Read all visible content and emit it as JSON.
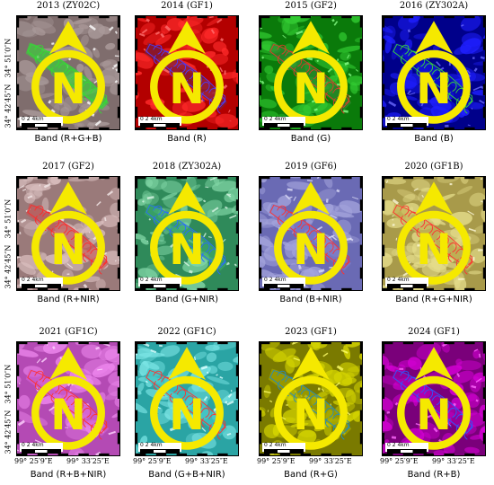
{
  "panels": [
    {
      "title": "2013 (ZY02C)",
      "caption": "Band (R+G+B)",
      "bg": "#7f6d6d",
      "terrain": "#aa9a9a",
      "snow": "#ffffff",
      "glacier": "#3ccf3c",
      "outline": "#33dd33"
    },
    {
      "title": "2014 (GF1)",
      "caption": "Band (R)",
      "bg": "#b30000",
      "terrain": "#ff2a2a",
      "snow": "#ff7070",
      "glacier": "#7a1f3a",
      "outline": "#4a3cff"
    },
    {
      "title": "2015 (GF2)",
      "caption": "Band (G)",
      "bg": "#0a7a0a",
      "terrain": "#33cc33",
      "snow": "#88ff88",
      "glacier": "#2f8a2f",
      "outline": "#e03a2a"
    },
    {
      "title": "2016 (ZY302A)",
      "caption": "Band (B)",
      "bg": "#00008a",
      "terrain": "#1f1fff",
      "snow": "#6a6aff",
      "glacier": "#0c0cc0",
      "outline": "#38d838"
    },
    {
      "title": "2017 (GF2)",
      "caption": "Band (R+NIR)",
      "bg": "#9a7a7a",
      "terrain": "#d9bebe",
      "snow": "#f4e8e8",
      "glacier": "#c05a5a",
      "outline": "#ff2a2a"
    },
    {
      "title": "2018 (ZY302A)",
      "caption": "Band (G+NIR)",
      "bg": "#2f8a5a",
      "terrain": "#7fd4a4",
      "snow": "#d8f4e4",
      "glacier": "#3aa86a",
      "outline": "#2a6aff"
    },
    {
      "title": "2019 (GF6)",
      "caption": "Band (B+NIR)",
      "bg": "#6a6ab4",
      "terrain": "#a4a4dc",
      "snow": "#dcdcf6",
      "glacier": "#7a7ac8",
      "outline": "#ff3030"
    },
    {
      "title": "2020 (GF1B)",
      "caption": "Band (R+G+NIR)",
      "bg": "#a89a4a",
      "terrain": "#e4dc8a",
      "snow": "#fbf8d8",
      "glacier": "#c8b85a",
      "outline": "#ff3030"
    },
    {
      "title": "2021 (GF1C)",
      "caption": "Band (R+B+NIR)",
      "bg": "#b44ab4",
      "terrain": "#ee88ee",
      "snow": "#ffd4ff",
      "glacier": "#d060d0",
      "outline": "#ff3030"
    },
    {
      "title": "2022 (GF1C)",
      "caption": "Band (G+B+NIR)",
      "bg": "#2aa4a4",
      "terrain": "#7ae4e4",
      "snow": "#e0ffff",
      "glacier": "#40c4c4",
      "outline": "#ff3030"
    },
    {
      "title": "2023 (GF1)",
      "caption": "Band (R+G)",
      "bg": "#7a7a00",
      "terrain": "#d4d400",
      "snow": "#ffff6a",
      "glacier": "#a4a400",
      "outline": "#1f8ac4"
    },
    {
      "title": "2024 (GF1)",
      "caption": "Band (R+B)",
      "bg": "#7a007a",
      "terrain": "#d400d4",
      "snow": "#ff6aff",
      "glacier": "#a400a4",
      "outline": "#2a5aff"
    }
  ],
  "north_label": "N",
  "north_color": "#f5e900",
  "scale_text": "0  2  4km",
  "lat_labels": [
    "34° 51′0″N",
    "34° 42′45″N"
  ],
  "lon_labels": [
    "99° 25′9″E",
    "99° 33′25″E"
  ]
}
